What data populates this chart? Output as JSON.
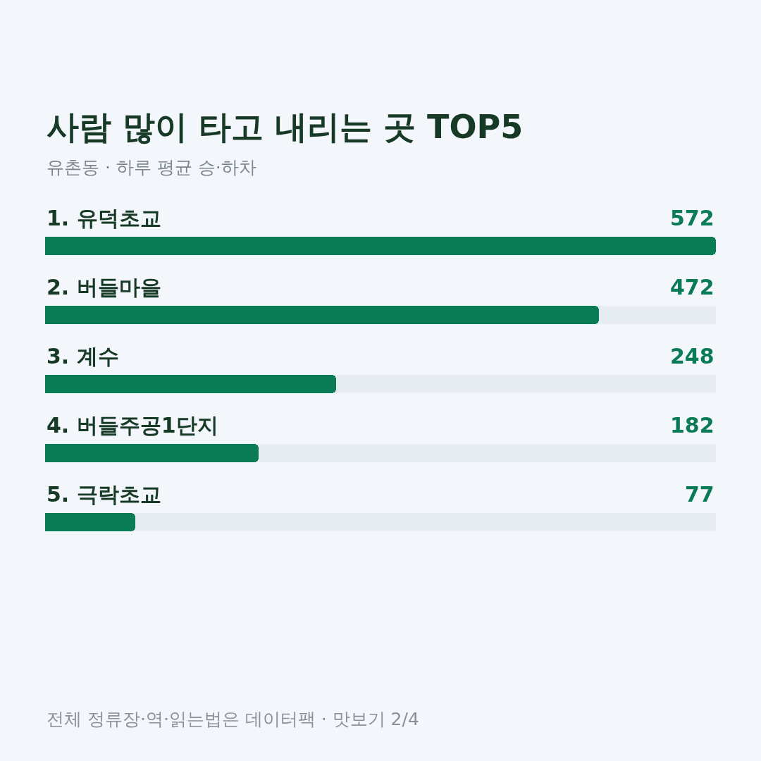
{
  "chart_data": {
    "type": "bar",
    "orientation": "horizontal",
    "title": "사람 많이 타고 내리는 곳 TOP5",
    "subtitle": "유촌동 · 하루 평균 승·하차",
    "categories": [
      "1. 유덕초교",
      "2. 버들마을",
      "3. 계수",
      "4. 버들주공1단지",
      "5. 극락초교"
    ],
    "values": [
      572,
      472,
      248,
      182,
      77
    ],
    "color": "#0a7c55",
    "data_labels": true,
    "legend": false,
    "annotations": [
      "전체 정류장·역·읽는법은 데이터팩 · 맛보기 2/4"
    ]
  }
}
